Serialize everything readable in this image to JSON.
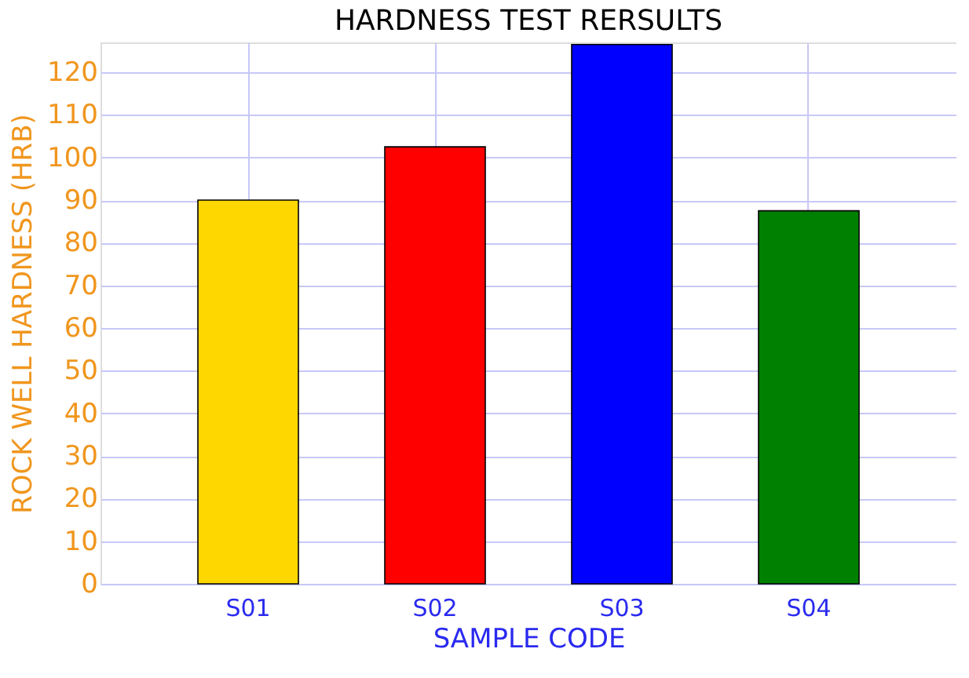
{
  "chart_data": {
    "type": "bar",
    "title": "HARDNESS TEST RERSULTS",
    "xlabel": "SAMPLE CODE",
    "ylabel": "ROCK WELL HARDNESS (HRB)",
    "categories": [
      "S01",
      "S02",
      "S03",
      "S04"
    ],
    "values": [
      90,
      102.5,
      126.5,
      87.5
    ],
    "colors": [
      "#ffd700",
      "#ff0000",
      "#0000ff",
      "#008000"
    ],
    "ylim": [
      0,
      127
    ],
    "yticks": [
      0,
      10,
      20,
      30,
      40,
      50,
      60,
      70,
      80,
      90,
      100,
      110,
      120
    ],
    "grid": true
  }
}
